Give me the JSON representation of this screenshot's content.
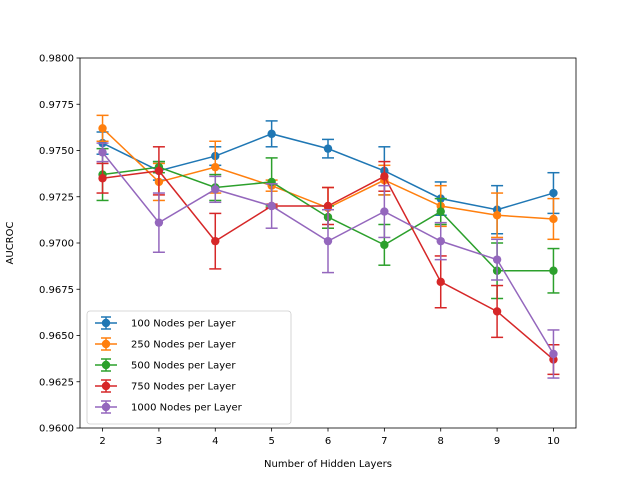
{
  "chart_data": {
    "type": "line",
    "xlabel": "Number of Hidden Layers",
    "ylabel": "AUCROC",
    "x": [
      2,
      3,
      4,
      5,
      6,
      7,
      8,
      9,
      10
    ],
    "xlim": [
      1.6,
      10.4
    ],
    "ylim": [
      0.96,
      0.98
    ],
    "x_ticks": [
      "2",
      "3",
      "4",
      "5",
      "6",
      "7",
      "8",
      "9",
      "10"
    ],
    "y_ticks": [
      "0.9600",
      "0.9625",
      "0.9650",
      "0.9675",
      "0.9700",
      "0.9725",
      "0.9750",
      "0.9775",
      "0.9800"
    ],
    "grid": false,
    "legend_position": "lower-left",
    "series": [
      {
        "name": "100 Nodes per Layer",
        "color": "#1f77b4",
        "values": [
          0.9754,
          0.9739,
          0.9747,
          0.9759,
          0.9751,
          0.9739,
          0.9724,
          0.9718,
          0.9727
        ],
        "errors": [
          0.0006,
          0.0005,
          0.0005,
          0.0007,
          0.0005,
          0.0013,
          0.0009,
          0.0013,
          0.0011
        ]
      },
      {
        "name": "250 Nodes per Layer",
        "color": "#ff7f0e",
        "values": [
          0.9762,
          0.9733,
          0.9741,
          0.9731,
          0.9719,
          0.9734,
          0.972,
          0.9715,
          0.9713
        ],
        "errors": [
          0.0007,
          0.001,
          0.0014,
          0.0003,
          0.0011,
          0.0008,
          0.0011,
          0.0012,
          0.0011
        ]
      },
      {
        "name": "500 Nodes per Layer",
        "color": "#2ca02c",
        "values": [
          0.9737,
          0.9741,
          0.973,
          0.9733,
          0.9714,
          0.9699,
          0.9717,
          0.9685,
          0.9685
        ],
        "errors": [
          0.0014,
          0.0003,
          0.0007,
          0.0013,
          0.0006,
          0.0011,
          0.0007,
          0.0015,
          0.0012
        ]
      },
      {
        "name": "750 Nodes per Layer",
        "color": "#d62728",
        "values": [
          0.9735,
          0.9739,
          0.9701,
          0.972,
          0.972,
          0.9736,
          0.9679,
          0.9663,
          0.9637
        ],
        "errors": [
          0.0008,
          0.0013,
          0.0015,
          0.0001,
          0.001,
          0.0008,
          0.0014,
          0.0014,
          0.0008
        ]
      },
      {
        "name": "1000 Nodes per Layer",
        "color": "#9467bd",
        "values": [
          0.9749,
          0.9711,
          0.9729,
          0.972,
          0.9701,
          0.9717,
          0.9701,
          0.9691,
          0.964
        ],
        "errors": [
          0.0005,
          0.0016,
          0.0007,
          0.0012,
          0.0017,
          0.0014,
          0.001,
          0.0011,
          0.0013
        ]
      }
    ]
  }
}
